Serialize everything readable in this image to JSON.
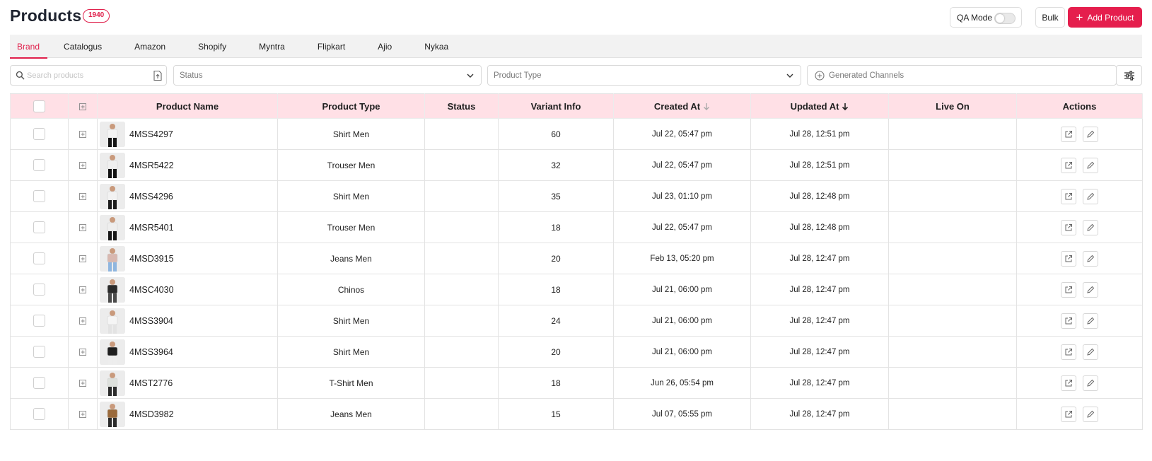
{
  "header": {
    "title": "Products",
    "count": "1940",
    "qa_mode_label": "QA Mode",
    "bulk_label": "Bulk",
    "add_product_label": "Add Product"
  },
  "tabs": [
    {
      "label": "Brand",
      "active": true
    },
    {
      "label": "Catalogus",
      "active": false
    },
    {
      "label": "Amazon",
      "active": false
    },
    {
      "label": "Shopify",
      "active": false
    },
    {
      "label": "Myntra",
      "active": false
    },
    {
      "label": "Flipkart",
      "active": false
    },
    {
      "label": "Ajio",
      "active": false
    },
    {
      "label": "Nykaa",
      "active": false
    }
  ],
  "filters": {
    "search_placeholder": "Search products",
    "status_placeholder": "Status",
    "product_type_placeholder": "Product Type",
    "channels_placeholder": "Generated Channels"
  },
  "table": {
    "columns": {
      "product_name": "Product Name",
      "product_type": "Product Type",
      "status": "Status",
      "variant_info": "Variant Info",
      "created_at": "Created At",
      "updated_at": "Updated At",
      "live_on": "Live On",
      "actions": "Actions"
    },
    "rows": [
      {
        "name": "4MSS4297",
        "type": "Shirt Men",
        "status": "",
        "variants": "60",
        "created": "Jul 22, 05:47 pm",
        "updated": "Jul 28, 12:51 pm",
        "live_on": ""
      },
      {
        "name": "4MSR5422",
        "type": "Trouser Men",
        "status": "",
        "variants": "32",
        "created": "Jul 22, 05:47 pm",
        "updated": "Jul 28, 12:51 pm",
        "live_on": ""
      },
      {
        "name": "4MSS4296",
        "type": "Shirt Men",
        "status": "",
        "variants": "35",
        "created": "Jul 23, 01:10 pm",
        "updated": "Jul 28, 12:48 pm",
        "live_on": ""
      },
      {
        "name": "4MSR5401",
        "type": "Trouser Men",
        "status": "",
        "variants": "18",
        "created": "Jul 22, 05:47 pm",
        "updated": "Jul 28, 12:48 pm",
        "live_on": ""
      },
      {
        "name": "4MSD3915",
        "type": "Jeans Men",
        "status": "",
        "variants": "20",
        "created": "Feb 13, 05:20 pm",
        "updated": "Jul 28, 12:47 pm",
        "live_on": ""
      },
      {
        "name": "4MSC4030",
        "type": "Chinos",
        "status": "",
        "variants": "18",
        "created": "Jul 21, 06:00 pm",
        "updated": "Jul 28, 12:47 pm",
        "live_on": ""
      },
      {
        "name": "4MSS3904",
        "type": "Shirt Men",
        "status": "",
        "variants": "24",
        "created": "Jul 21, 06:00 pm",
        "updated": "Jul 28, 12:47 pm",
        "live_on": ""
      },
      {
        "name": "4MSS3964",
        "type": "Shirt Men",
        "status": "",
        "variants": "20",
        "created": "Jul 21, 06:00 pm",
        "updated": "Jul 28, 12:47 pm",
        "live_on": ""
      },
      {
        "name": "4MST2776",
        "type": "T-Shirt Men",
        "status": "",
        "variants": "18",
        "created": "Jun 26, 05:54 pm",
        "updated": "Jul 28, 12:47 pm",
        "live_on": ""
      },
      {
        "name": "4MSD3982",
        "type": "Jeans Men",
        "status": "",
        "variants": "15",
        "created": "Jul 07, 05:55 pm",
        "updated": "Jul 28, 12:47 pm",
        "live_on": ""
      }
    ]
  },
  "colors": {
    "accent": "#e51e4d",
    "header_row_bg": "#ffe0e6"
  },
  "icons": {
    "search": "search-icon",
    "upload": "upload-file-icon",
    "chevron": "chevron-down-icon",
    "add_channel": "plus-circle-icon",
    "settings": "sliders-icon",
    "expand": "plus-square-icon",
    "open": "external-link-icon",
    "edit": "pencil-icon",
    "sort": "arrow-down-icon"
  }
}
